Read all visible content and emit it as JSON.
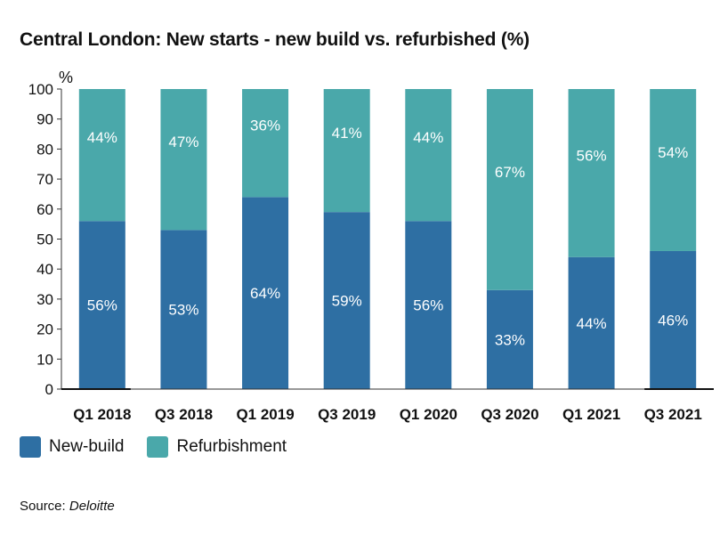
{
  "chart_data": {
    "type": "bar",
    "stacked": true,
    "title": "Central London: New starts - new build vs. refurbished (%)",
    "ylabel": "%",
    "ylim": [
      0,
      100
    ],
    "yticks": [
      0,
      10,
      20,
      30,
      40,
      50,
      60,
      70,
      80,
      90,
      100
    ],
    "categories": [
      "Q1 2018",
      "Q3 2018",
      "Q1 2019",
      "Q3 2019",
      "Q1 2020",
      "Q3 2020",
      "Q1 2021",
      "Q3 2021"
    ],
    "series": [
      {
        "name": "New-build",
        "color": "#2e6fa3",
        "values": [
          56,
          53,
          64,
          59,
          56,
          33,
          44,
          46
        ],
        "labels": [
          "56%",
          "53%",
          "64%",
          "59%",
          "56%",
          "33%",
          "44%",
          "46%"
        ]
      },
      {
        "name": "Refurbishment",
        "color": "#4aa8aa",
        "values": [
          44,
          47,
          36,
          41,
          44,
          67,
          56,
          54
        ],
        "labels": [
          "44%",
          "47%",
          "36%",
          "41%",
          "44%",
          "67%",
          "56%",
          "54%"
        ]
      }
    ],
    "grid": false,
    "legend": "bottom-left"
  },
  "source_label": "Source: ",
  "source_name": "Deloitte"
}
